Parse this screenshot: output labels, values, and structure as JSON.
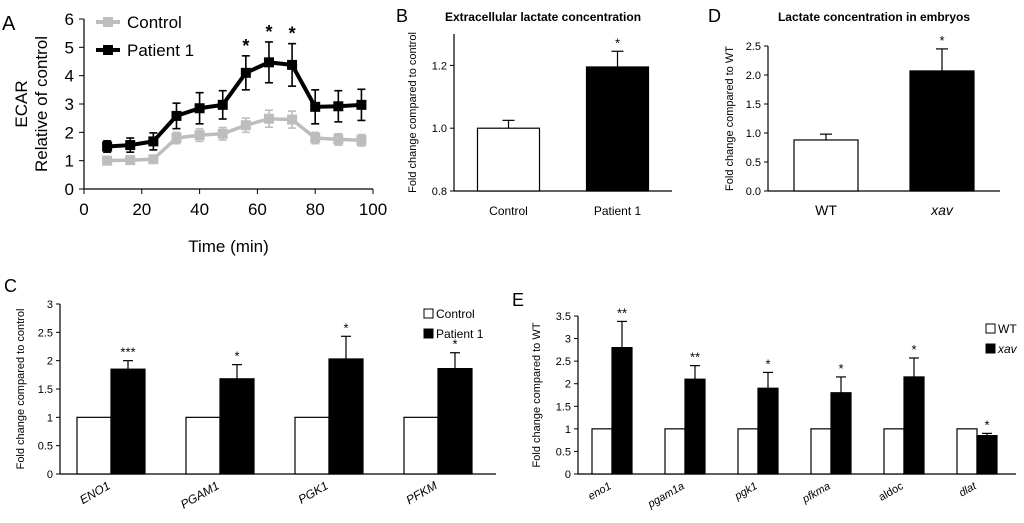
{
  "chart_data": [
    {
      "panel": "A",
      "type": "line",
      "title": "",
      "xlabel": "Time (min)",
      "ylabel": [
        "ECAR",
        "Relative of control"
      ],
      "xlim": [
        0,
        100
      ],
      "ylim": [
        0,
        6
      ],
      "xticks": [
        0,
        20,
        40,
        60,
        80,
        100
      ],
      "yticks": [
        0,
        1,
        2,
        3,
        4,
        5,
        6
      ],
      "legend": "top-left",
      "grid": false,
      "x": [
        8,
        16,
        24,
        32,
        40,
        48,
        56,
        64,
        72,
        80,
        88,
        96
      ],
      "series": [
        {
          "name": "Control",
          "color": "#bdbdbd",
          "values": [
            1.0,
            1.02,
            1.05,
            1.8,
            1.9,
            1.95,
            2.25,
            2.48,
            2.45,
            1.8,
            1.75,
            1.72
          ],
          "errors": [
            0.1,
            0.1,
            0.12,
            0.2,
            0.22,
            0.22,
            0.25,
            0.3,
            0.3,
            0.2,
            0.2,
            0.2
          ]
        },
        {
          "name": "Patient 1",
          "color": "#000000",
          "values": [
            1.5,
            1.55,
            1.68,
            2.58,
            2.85,
            2.97,
            4.1,
            4.47,
            4.38,
            2.9,
            2.92,
            2.97
          ],
          "errors": [
            0.2,
            0.25,
            0.3,
            0.45,
            0.55,
            0.5,
            0.6,
            0.72,
            0.75,
            0.6,
            0.55,
            0.55
          ]
        }
      ],
      "significance": [
        {
          "x": 56,
          "label": "*"
        },
        {
          "x": 64,
          "label": "*"
        },
        {
          "x": 72,
          "label": "*"
        }
      ]
    },
    {
      "panel": "B",
      "type": "bar",
      "title": "Extracellular lactate concentration",
      "xlabel": "",
      "ylabel": "Fold change compared to control",
      "ylim": [
        0.8,
        1.3
      ],
      "yticks": [
        "0.8",
        "1.0",
        "1.2"
      ],
      "categories": [
        "Control",
        "Patient 1"
      ],
      "values": [
        1.0,
        1.195
      ],
      "errors": [
        0.025,
        0.05
      ],
      "colors": [
        "#ffffff",
        "#000000"
      ],
      "significance": [
        "",
        "*"
      ]
    },
    {
      "panel": "D",
      "type": "bar",
      "title": "Lactate concentration in embryos",
      "xlabel": "",
      "ylabel": "Fold change compared to WT",
      "ylim": [
        0,
        2.5
      ],
      "yticks": [
        "0.0",
        "0.5",
        "1.0",
        "1.5",
        "2.0",
        "2.5"
      ],
      "categories": [
        "WT",
        "xav"
      ],
      "italic_categories": [
        false,
        true
      ],
      "values": [
        0.88,
        2.07
      ],
      "errors": [
        0.1,
        0.38
      ],
      "colors": [
        "#ffffff",
        "#000000"
      ],
      "significance": [
        "",
        "*"
      ]
    },
    {
      "panel": "C",
      "type": "bar",
      "title": "",
      "xlabel": "",
      "ylabel": "Fold change compared to control",
      "ylim": [
        0,
        3
      ],
      "yticks": [
        "0",
        "0.5",
        "1",
        "1.5",
        "2",
        "2.5",
        "3"
      ],
      "legend": "top-right",
      "categories": [
        "ENO1",
        "PGAM1",
        "PGK1",
        "PFKM"
      ],
      "series": [
        {
          "name": "Control",
          "color": "#ffffff",
          "values": [
            1,
            1,
            1,
            1
          ],
          "errors": [
            0,
            0,
            0,
            0
          ]
        },
        {
          "name": "Patient 1",
          "color": "#000000",
          "values": [
            1.85,
            1.68,
            2.03,
            1.86
          ],
          "errors": [
            0.15,
            0.25,
            0.4,
            0.28
          ]
        }
      ],
      "significance": [
        "***",
        "*",
        "*",
        "*"
      ]
    },
    {
      "panel": "E",
      "type": "bar",
      "title": "",
      "xlabel": "",
      "ylabel": "Fold change compared to WT",
      "ylim": [
        0,
        3.5
      ],
      "yticks": [
        "0",
        "0.5",
        "1",
        "1.5",
        "2",
        "2.5",
        "3",
        "3.5"
      ],
      "legend": "top-right",
      "categories": [
        "eno1",
        "pgam1a",
        "pgk1",
        "pfkma",
        "aldoc",
        "dlat"
      ],
      "italic_categories": [
        true,
        true,
        true,
        true,
        false,
        true
      ],
      "series": [
        {
          "name": "WT",
          "color": "#ffffff",
          "values": [
            1,
            1,
            1,
            1,
            1,
            1
          ],
          "errors": [
            0,
            0,
            0,
            0,
            0,
            0
          ]
        },
        {
          "name": "xav",
          "color": "#000000",
          "italic_name": true,
          "values": [
            2.8,
            2.1,
            1.9,
            1.8,
            2.15,
            0.85
          ],
          "errors": [
            0.58,
            0.3,
            0.35,
            0.35,
            0.42,
            0.05
          ]
        }
      ],
      "significance": [
        "**",
        "**",
        "*",
        "*",
        "*",
        "*"
      ]
    }
  ]
}
